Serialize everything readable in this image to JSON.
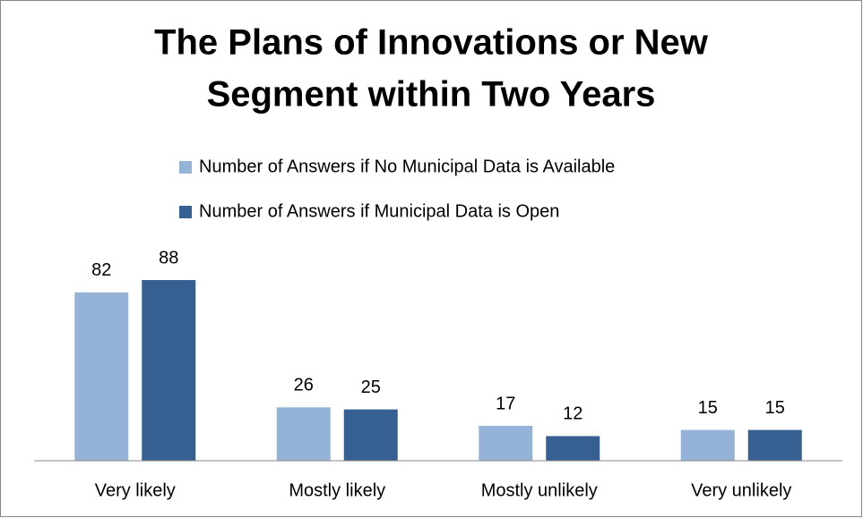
{
  "chart_data": {
    "type": "bar",
    "title": [
      "The Plans of Innovations or New",
      "Segment within Two Years"
    ],
    "categories": [
      "Very likely",
      "Mostly likely",
      "Mostly unlikely",
      "Very unlikely"
    ],
    "series": [
      {
        "name": "Number of Answers if No Municipal Data is Available",
        "color": "#95b3d7",
        "values": [
          82,
          26,
          17,
          15
        ]
      },
      {
        "name": "Number of Answers if Municipal Data is Open",
        "color": "#376092",
        "values": [
          88,
          25,
          12,
          15
        ]
      }
    ],
    "ylim": [
      0,
      100
    ],
    "legend": "top"
  }
}
